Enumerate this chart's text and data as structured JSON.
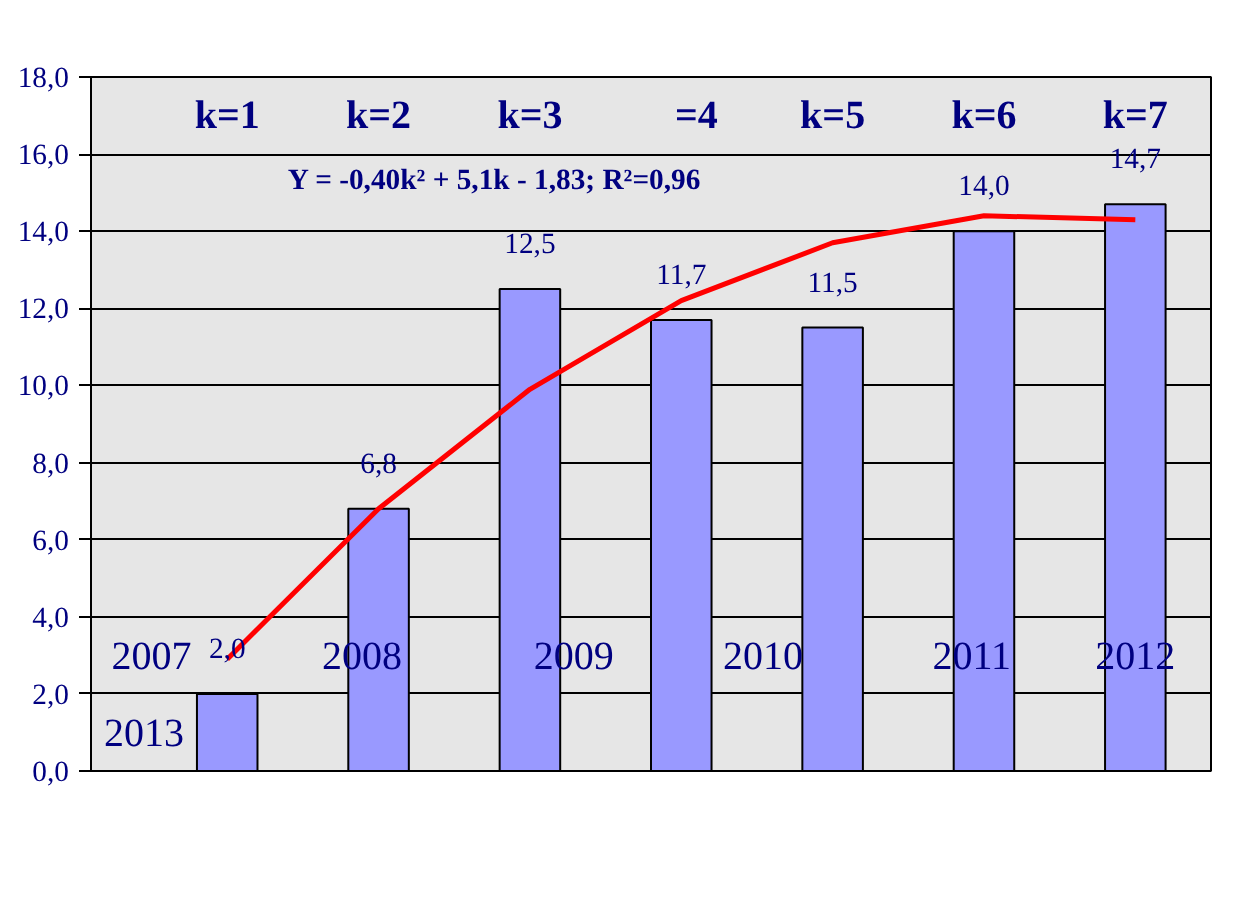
{
  "chart_data": {
    "type": "bar",
    "categories": [
      null,
      null,
      null,
      null,
      null,
      null,
      null
    ],
    "series": [
      {
        "color": "#9999ff",
        "values": [
          2.0,
          6.8,
          12.5,
          11.7,
          11.5,
          14.0,
          14.7
        ],
        "value_labels": [
          "2,0",
          "6,8",
          "12,5",
          "11,7",
          "11,5",
          "14,0",
          "14,7"
        ]
      },
      {
        "type": "line",
        "color": "#ff0000",
        "values": [
          2.9,
          6.8,
          9.9,
          12.2,
          13.7,
          14.4,
          14.3
        ]
      }
    ],
    "ylim": [
      0,
      18
    ],
    "yticks": [
      {
        "value": 0,
        "label": "0,0"
      },
      {
        "value": 2,
        "label": "2,0"
      },
      {
        "value": 4,
        "label": "4,0"
      },
      {
        "value": 6,
        "label": "6,0"
      },
      {
        "value": 8,
        "label": "8,0"
      },
      {
        "value": 10,
        "label": "10,0"
      },
      {
        "value": 12,
        "label": "12,0"
      },
      {
        "value": 14,
        "label": "14,0"
      },
      {
        "value": 16,
        "label": "16,0"
      },
      {
        "value": 18,
        "label": "18,0"
      }
    ],
    "grid": "y",
    "marker": "none",
    "line_style": "solid",
    "annotations": [
      "Y = -0,40k² + 5,1k - 1,83; R²=0,96",
      "k=1",
      "k=2",
      "k=3",
      "=4",
      "k=5",
      "k=6",
      "k=7",
      "2007",
      "2008",
      "2009",
      "2010",
      "2011",
      "2012",
      "2013"
    ]
  }
}
